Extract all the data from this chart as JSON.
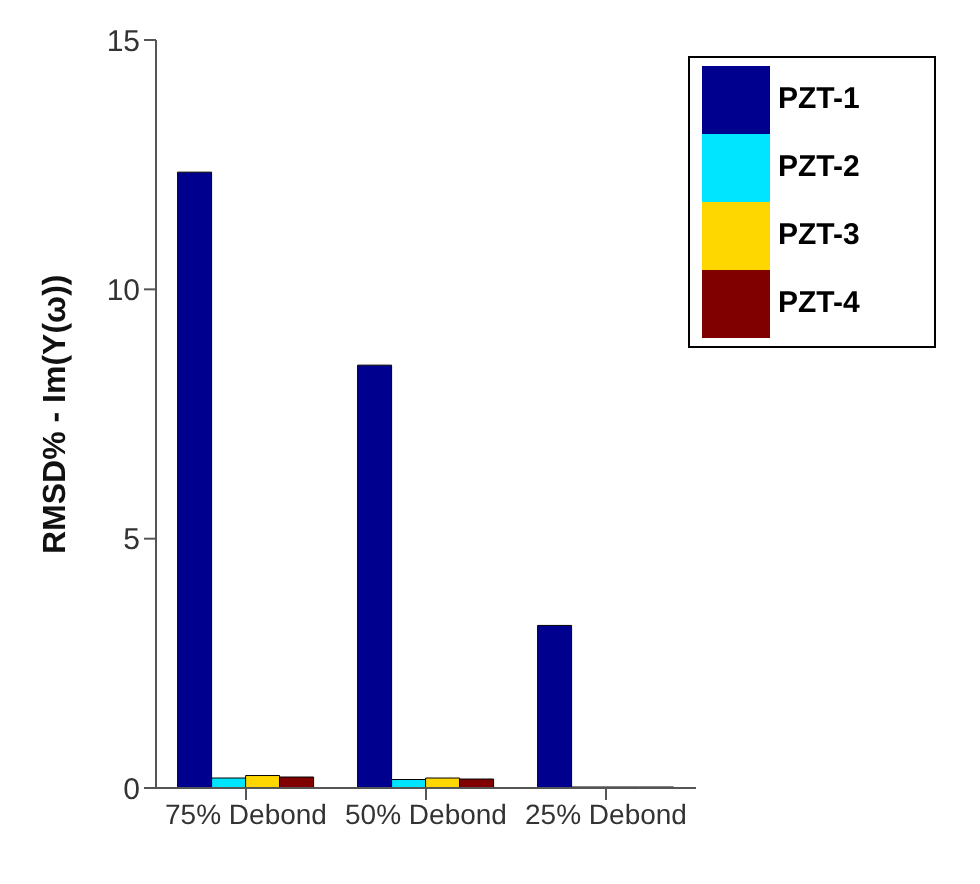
{
  "chart_data": {
    "type": "bar",
    "ylabel": "RMSD% - Im(Y(ω))",
    "categories": [
      "75% Debond",
      "50% Debond",
      "25% Debond"
    ],
    "series": [
      {
        "name": "PZT-1",
        "color": "#00008f",
        "values": [
          12.35,
          8.48,
          3.26
        ]
      },
      {
        "name": "PZT-2",
        "color": "#00e5ff",
        "values": [
          0.2,
          0.17,
          0.02
        ]
      },
      {
        "name": "PZT-3",
        "color": "#ffd700",
        "values": [
          0.25,
          0.2,
          0.02
        ]
      },
      {
        "name": "PZT-4",
        "color": "#800000",
        "values": [
          0.22,
          0.18,
          0.02
        ]
      }
    ],
    "ylim": [
      0,
      15
    ],
    "yticks": [
      0,
      5,
      10,
      15
    ],
    "grid": false,
    "legend": "top right"
  }
}
